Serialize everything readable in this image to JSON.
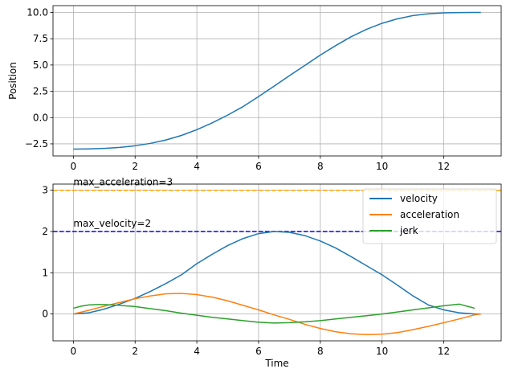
{
  "chart_data": [
    {
      "type": "line",
      "xlabel": "",
      "ylabel": "Position",
      "xlim": [
        -0.66,
        13.86
      ],
      "ylim": [
        -3.65,
        10.65
      ],
      "xticks": [
        0,
        2,
        4,
        6,
        8,
        10,
        12
      ],
      "yticks": [
        -2.5,
        0.0,
        2.5,
        5.0,
        7.5,
        10.0
      ],
      "ytick_labels": [
        "−2.5",
        "0.0",
        "2.5",
        "5.0",
        "7.5",
        "10.0"
      ],
      "grid": true,
      "series": [
        {
          "color": "#1f77b4",
          "x": [
            0,
            0.5,
            1,
            1.5,
            2,
            2.5,
            3,
            3.5,
            4,
            4.5,
            5,
            5.5,
            6,
            6.5,
            7,
            7.5,
            8,
            8.5,
            9,
            9.5,
            10,
            10.5,
            11,
            11.5,
            12,
            12.5,
            13,
            13.2
          ],
          "y": [
            -3.0,
            -2.98,
            -2.93,
            -2.84,
            -2.68,
            -2.45,
            -2.13,
            -1.7,
            -1.15,
            -0.5,
            0.24,
            1.05,
            2.0,
            2.98,
            3.99,
            4.96,
            5.95,
            6.85,
            7.69,
            8.4,
            8.97,
            9.4,
            9.7,
            9.88,
            9.96,
            9.99,
            10.0,
            10.0
          ]
        }
      ]
    },
    {
      "type": "line",
      "xlabel": "Time",
      "ylabel": "",
      "xlim": [
        -0.66,
        13.86
      ],
      "ylim": [
        -0.65,
        3.15
      ],
      "xticks": [
        0,
        2,
        4,
        6,
        8,
        10,
        12
      ],
      "yticks": [
        0,
        1,
        2,
        3
      ],
      "ytick_labels": [
        "0",
        "1",
        "2",
        "3"
      ],
      "grid": true,
      "legend": "top-right",
      "hlines": [
        {
          "y": 3,
          "color": "#ffa500",
          "label": "max_acceleration=3",
          "label_x": 0,
          "label_y": 3.12
        },
        {
          "y": 2,
          "color": "#0000ff",
          "label": "max_velocity=2",
          "label_x": 0,
          "label_y": 2.12
        }
      ],
      "series": [
        {
          "name": "velocity",
          "color": "#1f77b4",
          "x": [
            0,
            0.5,
            1,
            1.5,
            2,
            2.5,
            3,
            3.5,
            4,
            4.5,
            5,
            5.5,
            6,
            6.5,
            7,
            7.5,
            8,
            8.5,
            9,
            9.5,
            10,
            10.5,
            11,
            11.5,
            12,
            12.5,
            13,
            13.2
          ],
          "y": [
            0.0,
            0.03,
            0.12,
            0.24,
            0.38,
            0.55,
            0.74,
            0.95,
            1.22,
            1.45,
            1.66,
            1.83,
            1.95,
            2.0,
            1.98,
            1.9,
            1.77,
            1.6,
            1.39,
            1.17,
            0.95,
            0.7,
            0.44,
            0.22,
            0.1,
            0.03,
            0.0,
            0.0
          ]
        },
        {
          "name": "acceleration",
          "color": "#ff7f0e",
          "x": [
            0,
            0.5,
            1,
            1.5,
            2,
            2.5,
            3,
            3.5,
            4,
            4.5,
            5,
            5.5,
            6,
            6.5,
            7,
            7.5,
            8,
            8.5,
            9,
            9.5,
            10,
            10.5,
            11,
            11.5,
            12,
            12.5,
            13,
            13.2
          ],
          "y": [
            0.0,
            0.09,
            0.19,
            0.28,
            0.37,
            0.44,
            0.49,
            0.5,
            0.47,
            0.41,
            0.32,
            0.21,
            0.1,
            -0.02,
            -0.13,
            -0.25,
            -0.35,
            -0.43,
            -0.48,
            -0.5,
            -0.49,
            -0.45,
            -0.38,
            -0.3,
            -0.21,
            -0.12,
            -0.02,
            0.0
          ]
        },
        {
          "name": "jerk",
          "color": "#2ca02c",
          "x": [
            0,
            0.25,
            0.5,
            0.75,
            1,
            1.5,
            2,
            2.5,
            3,
            3.5,
            4,
            4.5,
            5,
            5.5,
            6,
            6.5,
            7,
            7.5,
            8,
            8.5,
            9,
            9.5,
            10,
            10.5,
            11,
            11.5,
            12,
            12.5,
            13
          ],
          "y": [
            0.14,
            0.19,
            0.22,
            0.23,
            0.23,
            0.21,
            0.18,
            0.13,
            0.08,
            0.02,
            -0.03,
            -0.08,
            -0.12,
            -0.16,
            -0.2,
            -0.22,
            -0.21,
            -0.19,
            -0.16,
            -0.12,
            -0.08,
            -0.04,
            0.0,
            0.05,
            0.1,
            0.15,
            0.2,
            0.24,
            0.14
          ]
        }
      ]
    }
  ]
}
